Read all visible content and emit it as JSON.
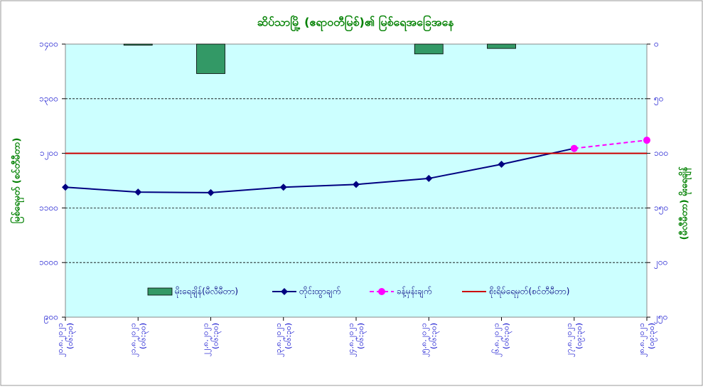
{
  "chart_data": {
    "type": "combo",
    "title": "ဆိပ်သာမြို့ (ဧရာဝတီမြစ်)၏ မြစ်ရေအခြေအနေ",
    "y_label": "မြစ်ရေမှတ် (စင်တီမီတာ)",
    "y2_label": "(မီလီမီတာ) မိုးရေချိန်",
    "categories": [
      "၂၀.၈.၂၀၂၁",
      "၂၁.၈.၂၀၂၁",
      "၂၂.၈.၂၀၂၁",
      "၂၃.၈.၂၀၂၁",
      "၂၄.၈.၂၀၂၁",
      "၂၅.၈.၂၀၂၁",
      "၂၆.၈.၂၀၂၁",
      "၂၇.၈.၂၀၂၁",
      "၂၈.၈.၂၀၂၁"
    ],
    "times": [
      "(၀၆:၃၀)",
      "(၀၆:၃၀)",
      "(၀၆:၃၀)",
      "(၀၆:၃၀)",
      "(၀၆:၃၀)",
      "(၀၆:၃၀)",
      "(၀၆:၃၀)",
      "(၀၉:၃၀)",
      "(၀၉:၃၀)"
    ],
    "ylim": [
      900,
      1400
    ],
    "yticks": [
      {
        "value": 900,
        "label": "၉၀၀"
      },
      {
        "value": 1000,
        "label": "၁၀၀၀"
      },
      {
        "value": 1100,
        "label": "၁၁၀၀"
      },
      {
        "value": 1200,
        "label": "၁၂၀၀"
      },
      {
        "value": 1300,
        "label": "၁၃၀၀"
      },
      {
        "value": 1400,
        "label": "၁၄၀၀"
      }
    ],
    "y2lim": [
      250,
      0
    ],
    "y2ticks": [
      {
        "value": 0,
        "label": "၀"
      },
      {
        "value": 50,
        "label": "၅၀"
      },
      {
        "value": 100,
        "label": "၁၀၀"
      },
      {
        "value": 150,
        "label": "၁၅၀"
      },
      {
        "value": 200,
        "label": "၂၀၀"
      },
      {
        "value": 250,
        "label": "၂၅၀"
      }
    ],
    "grid": true,
    "series": [
      {
        "name": "မိုးရေချိန်(မီလီမီတာ)",
        "kind": "bar",
        "axis": "y2",
        "color": "#339966",
        "values": [
          0,
          1,
          27,
          0,
          0,
          9,
          4,
          null,
          null
        ]
      },
      {
        "name": "တိုင်းထွာချက်",
        "kind": "line",
        "color": "#000080",
        "marker": "diamond",
        "values": [
          1138,
          1129,
          1128,
          1138,
          1143,
          1154,
          1180,
          1209,
          null
        ]
      },
      {
        "name": "ခန့်မှန်းချက်",
        "kind": "line",
        "color": "#ff00ff",
        "marker": "circle",
        "dashed": true,
        "values": [
          null,
          null,
          null,
          null,
          null,
          null,
          null,
          1209,
          1224
        ]
      },
      {
        "name": "စိုးရိမ်ရေမှတ်(စင်တီမီတာ)",
        "kind": "line",
        "color": "#cc0000",
        "values": [
          1200,
          1200,
          1200,
          1200,
          1200,
          1200,
          1200,
          1200,
          1200
        ]
      }
    ]
  }
}
